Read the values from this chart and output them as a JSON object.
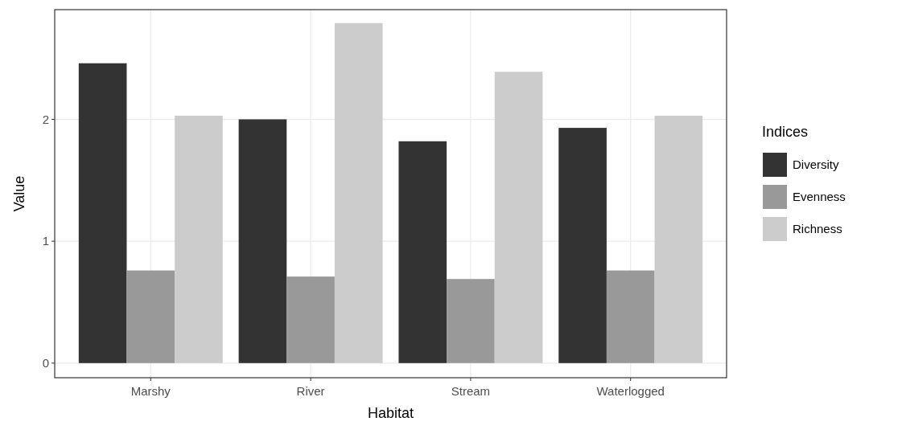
{
  "chart_data": {
    "type": "bar",
    "xlabel": "Habitat",
    "ylabel": "Value",
    "legend_title": "Indices",
    "categories": [
      "Marshy",
      "River",
      "Stream",
      "Waterlogged"
    ],
    "series": [
      {
        "name": "Diversity",
        "color": "#333333",
        "values": [
          2.46,
          2.0,
          1.82,
          1.93
        ]
      },
      {
        "name": "Evenness",
        "color": "#999999",
        "values": [
          0.76,
          0.71,
          0.69,
          0.76
        ]
      },
      {
        "name": "Richness",
        "color": "#cccccc",
        "values": [
          2.03,
          2.79,
          2.39,
          2.03
        ]
      }
    ],
    "ylim": [
      -0.12,
      2.9
    ],
    "yticks": [
      0,
      1,
      2
    ],
    "grid": true,
    "legend": "right"
  }
}
